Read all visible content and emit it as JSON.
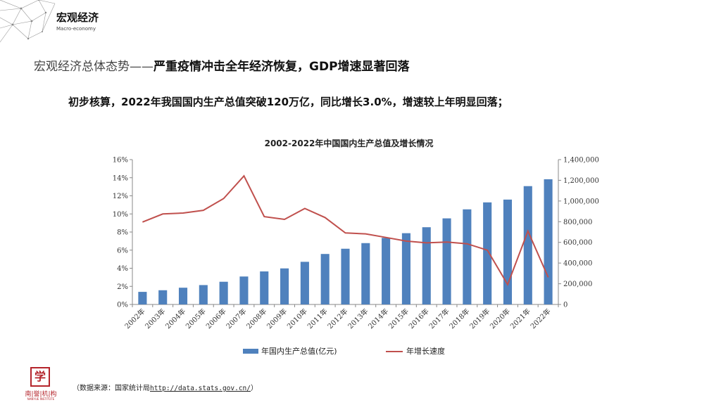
{
  "header": {
    "title": "宏观经济",
    "subtitle": "Macro-economy"
  },
  "headline": {
    "lead": "宏观经济总体态势——",
    "emph1": "严重疫情冲击",
    "middle": "全年经济恢复，GDP增速显著回落"
  },
  "summary": "初步核算，2022年我国国内生产总值突破120万亿，同比增长3.0%，增速较上年明显回落；",
  "source": {
    "label": "（数据来源：国家统计局",
    "link": "http://data.stats.gov.cn/",
    "close": "）"
  },
  "logo": {
    "mark": "学",
    "name": "南|誉|机|构",
    "english": "NANYUE INSTITUTE"
  },
  "colors": {
    "bar": "#4f81bd",
    "line": "#c0504d",
    "axis": "#898989",
    "text": "#222222"
  },
  "chart_data": {
    "type": "bar",
    "title": "2002-2022年中国国内生产总值及增长情况",
    "categories": [
      "2002年",
      "2003年",
      "2004年",
      "2005年",
      "2006年",
      "2007年",
      "2008年",
      "2009年",
      "2010年",
      "2011年",
      "2012年",
      "2013年",
      "2014年",
      "2015年",
      "2016年",
      "2017年",
      "2018年",
      "2019年",
      "2020年",
      "2021年",
      "2022年"
    ],
    "series": [
      {
        "name": "年国内生产总值(亿元)",
        "kind": "bar",
        "axis": "right",
        "values": [
          121717,
          137422,
          161840,
          187319,
          219439,
          270092,
          319245,
          348518,
          412119,
          487940,
          538580,
          592963,
          643563,
          688858,
          746395,
          832036,
          919281,
          986515,
          1013567,
          1143670,
          1210207
        ]
      },
      {
        "name": "年增长速度",
        "kind": "line",
        "axis": "left",
        "values": [
          9.1,
          10.0,
          10.1,
          10.4,
          11.7,
          14.2,
          9.7,
          9.4,
          10.6,
          9.6,
          7.9,
          7.8,
          7.4,
          7.0,
          6.8,
          6.9,
          6.7,
          6.0,
          2.2,
          8.1,
          3.0
        ]
      }
    ],
    "y_left": {
      "min": 0,
      "max": 16,
      "step": 2,
      "ticks": [
        "0%",
        "2%",
        "4%",
        "6%",
        "8%",
        "10%",
        "12%",
        "14%",
        "16%"
      ]
    },
    "y_right": {
      "min": 0,
      "max": 1400000,
      "step": 200000,
      "ticks": [
        "0",
        "200,000",
        "400,000",
        "600,000",
        "800,000",
        "1,000,000",
        "1,200,000",
        "1,400,000"
      ]
    },
    "legend": [
      "年国内生产总值(亿元)",
      "年增长速度"
    ],
    "legend_position": "bottom"
  }
}
